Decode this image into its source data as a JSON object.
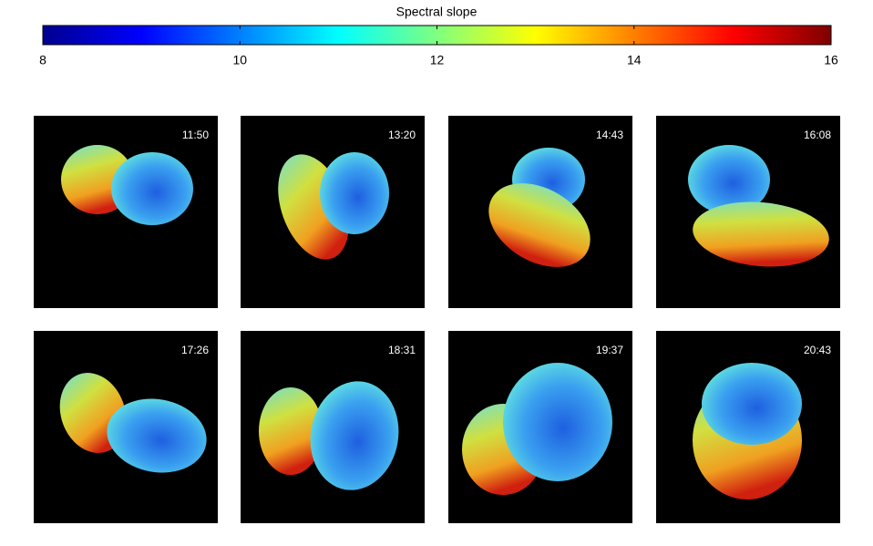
{
  "colorbar": {
    "title": "Spectral slope",
    "lim": [
      8,
      16
    ],
    "ticks": [
      8,
      10,
      12,
      14,
      16
    ]
  },
  "panels": [
    {
      "time": "11:50"
    },
    {
      "time": "13:20"
    },
    {
      "time": "14:43"
    },
    {
      "time": "16:08"
    },
    {
      "time": "17:26"
    },
    {
      "time": "18:31"
    },
    {
      "time": "19:37"
    },
    {
      "time": "20:43"
    }
  ]
}
